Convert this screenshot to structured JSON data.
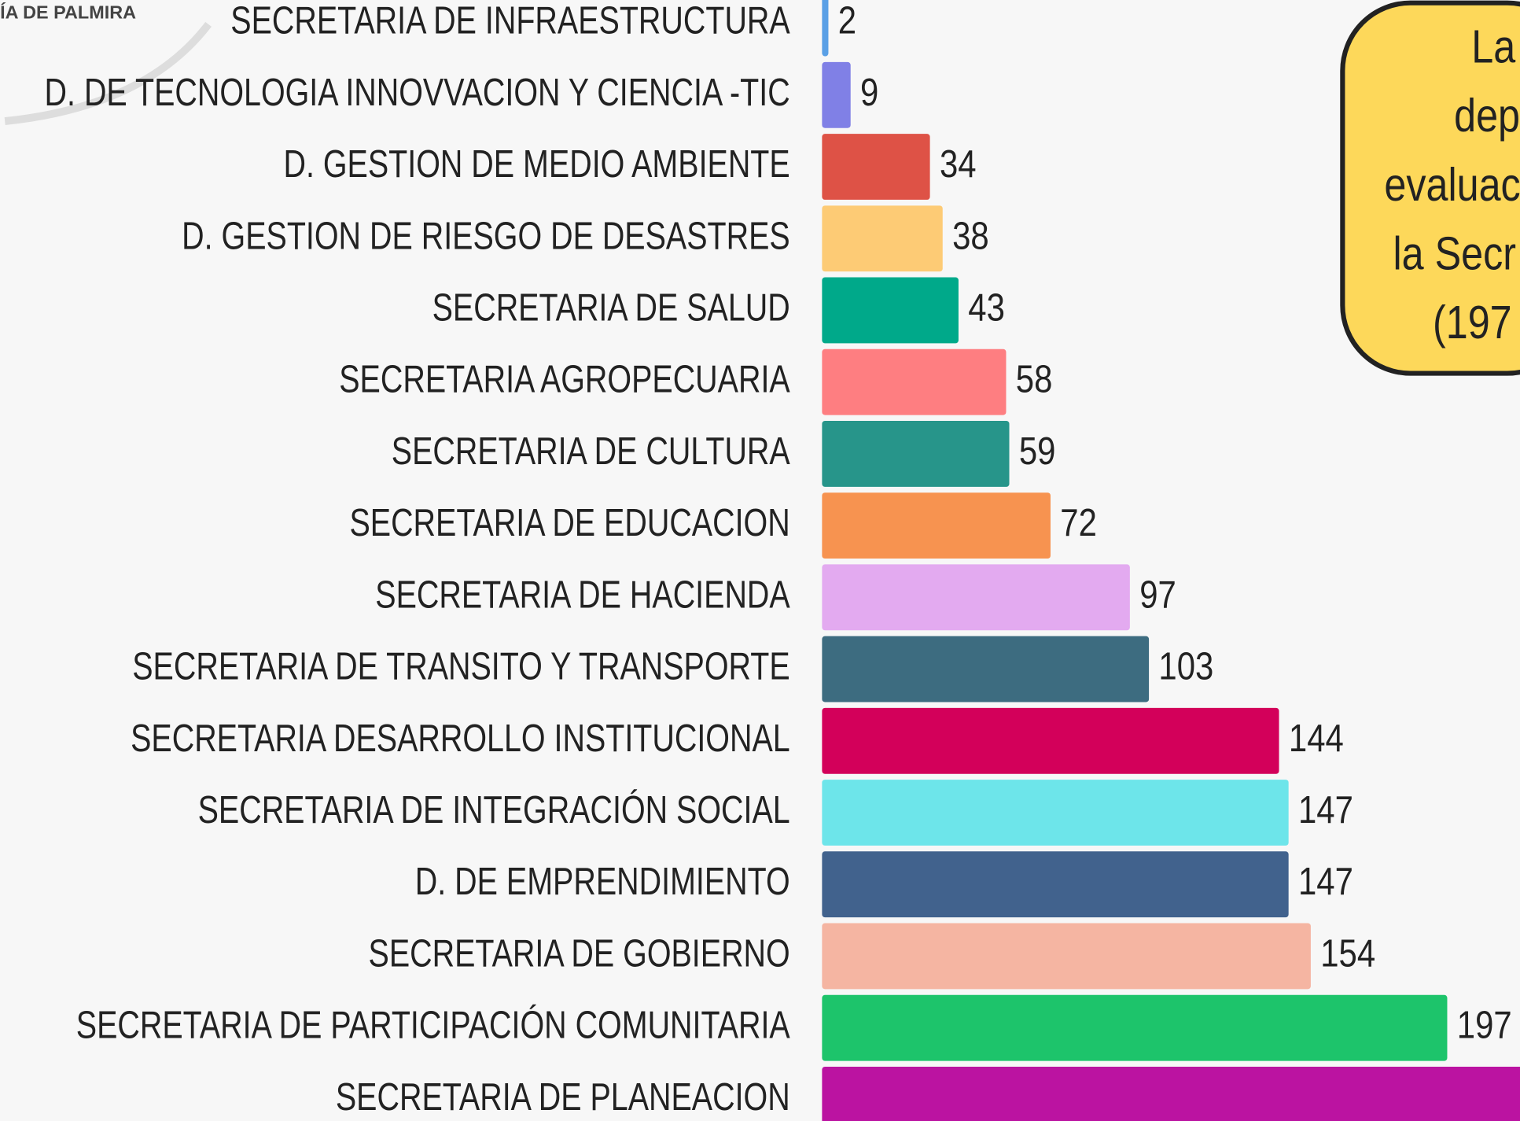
{
  "chart_data": {
    "type": "bar",
    "orientation": "horizontal",
    "logo": "ÍA DE PALMIRA",
    "categories": [
      "SECRETARIA DE INFRAESTRUCTURA",
      "D. DE TECNOLOGIA INNOVVACION Y CIENCIA -TIC",
      "D. GESTION DE MEDIO AMBIENTE",
      "D. GESTION DE RIESGO DE DESASTRES",
      "SECRETARIA DE SALUD",
      "SECRETARIA AGROPECUARIA",
      "SECRETARIA DE CULTURA",
      "SECRETARIA DE EDUCACION",
      "SECRETARIA DE HACIENDA",
      "SECRETARIA DE TRANSITO Y TRANSPORTE",
      "SECRETARIA DESARROLLO INSTITUCIONAL",
      "SECRETARIA DE INTEGRACIÓN SOCIAL",
      "D. DE EMPRENDIMIENTO",
      "SECRETARIA DE GOBIERNO",
      "SECRETARIA DE PARTICIPACIÓN COMUNITARIA",
      "SECRETARIA DE PLANEACION"
    ],
    "values": [
      2,
      9,
      34,
      38,
      43,
      58,
      59,
      72,
      97,
      103,
      144,
      147,
      147,
      154,
      197,
      240
    ],
    "colors": [
      "#5aa0e6",
      "#8080e6",
      "#de5246",
      "#fdcb75",
      "#00a98a",
      "#fe7e81",
      "#27958a",
      "#f79350",
      "#e3aaf0",
      "#3d6c80",
      "#d3005a",
      "#6de5ea",
      "#41628d",
      "#f5b5a2",
      "#1dc46b",
      "#bb13a1"
    ],
    "annotation": [
      "La",
      "dep",
      "evaluac",
      "la Secr",
      "(197"
    ]
  }
}
